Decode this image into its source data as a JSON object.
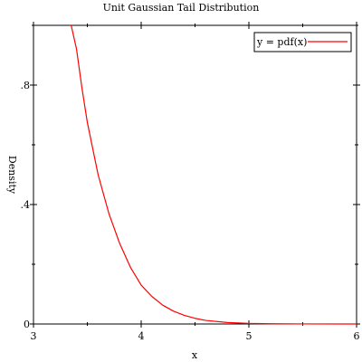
{
  "chart_data": {
    "type": "line",
    "title": "Unit Gaussian Tail Distribution",
    "xlabel": "x",
    "ylabel": "Density",
    "xlim": [
      3,
      6
    ],
    "ylim": [
      0,
      1
    ],
    "x_ticks": [
      3,
      4,
      5,
      6
    ],
    "x_tick_labels": [
      "3",
      "4",
      "5",
      "6"
    ],
    "y_ticks": [
      0,
      0.4,
      0.8
    ],
    "y_tick_labels": [
      "0",
      ".4",
      ".8"
    ],
    "grid": false,
    "legend_position": "top-right",
    "series": [
      {
        "name": "y = pdf(x)",
        "color": "#ff0000",
        "x": [
          3.35,
          3.4,
          3.45,
          3.5,
          3.6,
          3.7,
          3.8,
          3.9,
          4.0,
          4.1,
          4.2,
          4.3,
          4.4,
          4.5,
          4.6,
          4.8,
          5.0,
          5.2,
          5.5,
          6.0
        ],
        "y": [
          1.0,
          0.92,
          0.79,
          0.675,
          0.5,
          0.37,
          0.27,
          0.19,
          0.13,
          0.092,
          0.063,
          0.043,
          0.029,
          0.019,
          0.012,
          0.005,
          0.002,
          0.0008,
          0.0002,
          0.0
        ]
      }
    ]
  }
}
